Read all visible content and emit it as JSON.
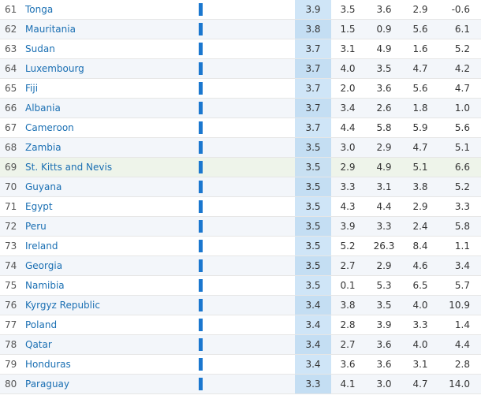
{
  "rows": [
    {
      "rank": "61",
      "country": "Tonga",
      "score": "3.9",
      "c1": "3.5",
      "c2": "3.6",
      "c3": "2.9",
      "c4": "-0.6"
    },
    {
      "rank": "62",
      "country": "Mauritania",
      "score": "3.8",
      "c1": "1.5",
      "c2": "0.9",
      "c3": "5.6",
      "c4": "6.1"
    },
    {
      "rank": "63",
      "country": "Sudan",
      "score": "3.7",
      "c1": "3.1",
      "c2": "4.9",
      "c3": "1.6",
      "c4": "5.2"
    },
    {
      "rank": "64",
      "country": "Luxembourg",
      "score": "3.7",
      "c1": "4.0",
      "c2": "3.5",
      "c3": "4.7",
      "c4": "4.2"
    },
    {
      "rank": "65",
      "country": "Fiji",
      "score": "3.7",
      "c1": "2.0",
      "c2": "3.6",
      "c3": "5.6",
      "c4": "4.7"
    },
    {
      "rank": "66",
      "country": "Albania",
      "score": "3.7",
      "c1": "3.4",
      "c2": "2.6",
      "c3": "1.8",
      "c4": "1.0"
    },
    {
      "rank": "67",
      "country": "Cameroon",
      "score": "3.7",
      "c1": "4.4",
      "c2": "5.8",
      "c3": "5.9",
      "c4": "5.6"
    },
    {
      "rank": "68",
      "country": "Zambia",
      "score": "3.5",
      "c1": "3.0",
      "c2": "2.9",
      "c3": "4.7",
      "c4": "5.1"
    },
    {
      "rank": "69",
      "country": "St. Kitts and Nevis",
      "score": "3.5",
      "c1": "2.9",
      "c2": "4.9",
      "c3": "5.1",
      "c4": "6.6"
    },
    {
      "rank": "70",
      "country": "Guyana",
      "score": "3.5",
      "c1": "3.3",
      "c2": "3.1",
      "c3": "3.8",
      "c4": "5.2"
    },
    {
      "rank": "71",
      "country": "Egypt",
      "score": "3.5",
      "c1": "4.3",
      "c2": "4.4",
      "c3": "2.9",
      "c4": "3.3"
    },
    {
      "rank": "72",
      "country": "Peru",
      "score": "3.5",
      "c1": "3.9",
      "c2": "3.3",
      "c3": "2.4",
      "c4": "5.8"
    },
    {
      "rank": "73",
      "country": "Ireland",
      "score": "3.5",
      "c1": "5.2",
      "c2": "26.3",
      "c3": "8.4",
      "c4": "1.1"
    },
    {
      "rank": "74",
      "country": "Georgia",
      "score": "3.5",
      "c1": "2.7",
      "c2": "2.9",
      "c3": "4.6",
      "c4": "3.4"
    },
    {
      "rank": "75",
      "country": "Namibia",
      "score": "3.5",
      "c1": "0.1",
      "c2": "5.3",
      "c3": "6.5",
      "c4": "5.7"
    },
    {
      "rank": "76",
      "country": "Kyrgyz Republic",
      "score": "3.4",
      "c1": "3.8",
      "c2": "3.5",
      "c3": "4.0",
      "c4": "10.9"
    },
    {
      "rank": "77",
      "country": "Poland",
      "score": "3.4",
      "c1": "2.8",
      "c2": "3.9",
      "c3": "3.3",
      "c4": "1.4"
    },
    {
      "rank": "78",
      "country": "Qatar",
      "score": "3.4",
      "c1": "2.7",
      "c2": "3.6",
      "c3": "4.0",
      "c4": "4.4"
    },
    {
      "rank": "79",
      "country": "Honduras",
      "score": "3.4",
      "c1": "3.6",
      "c2": "3.6",
      "c3": "3.1",
      "c4": "2.8"
    },
    {
      "rank": "80",
      "country": "Paraguay",
      "score": "3.3",
      "c1": "4.1",
      "c2": "3.0",
      "c3": "4.7",
      "c4": "14.0"
    }
  ],
  "highlighted_rank": "69",
  "colors": {
    "link": "#1a6fb3",
    "bar": "#1a77cf",
    "score_column": "#cfe5f7",
    "highlight_row": "#eef4ea"
  }
}
